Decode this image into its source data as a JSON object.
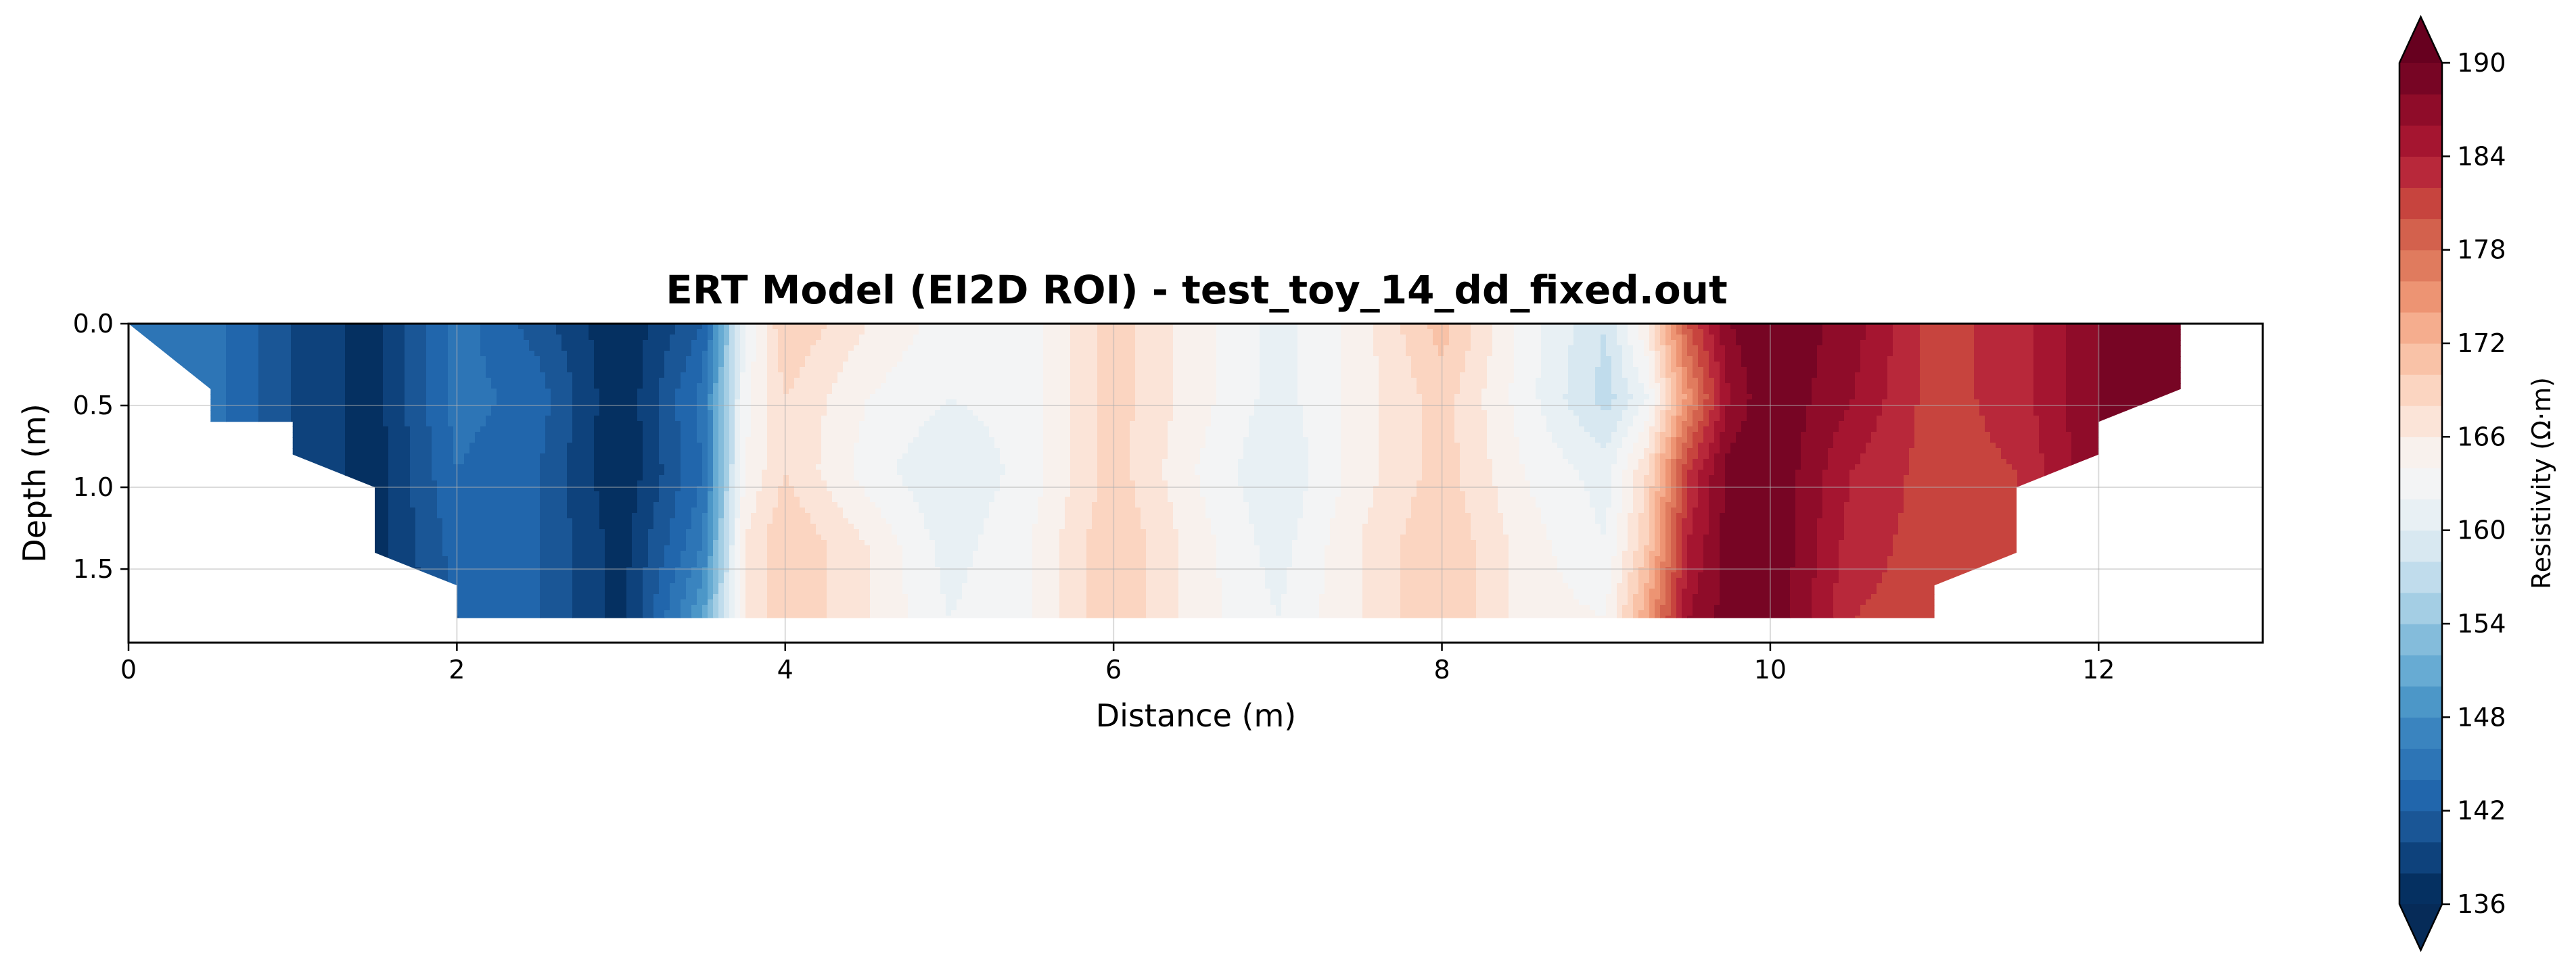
{
  "chart_data": {
    "type": "heatmap",
    "subtype": "filled-contour",
    "title": "ERT Model (EI2D ROI) - test_toy_14_dd_fixed.out",
    "xlabel": "Distance (m)",
    "ylabel": "Depth (m)",
    "xlim": [
      0,
      13
    ],
    "ylim": [
      1.95,
      0
    ],
    "y_inverted": true,
    "xticks": [
      0,
      2,
      4,
      6,
      8,
      10,
      12
    ],
    "xtick_labels": [
      "0",
      "2",
      "4",
      "6",
      "8",
      "10",
      "12"
    ],
    "yticks": [
      0.0,
      0.5,
      1.0,
      1.5
    ],
    "ytick_labels": [
      "0.0",
      "0.5",
      "1.0",
      "1.5"
    ],
    "grid": true,
    "colormap": "RdBu_r",
    "colorbar": {
      "label": "Resistivity (Ω·m)",
      "range": [
        136,
        190
      ],
      "levels": [
        136,
        138,
        140,
        142,
        144,
        146,
        148,
        150,
        152,
        154,
        156,
        158,
        160,
        162,
        164,
        166,
        168,
        170,
        172,
        174,
        176,
        178,
        180,
        182,
        184,
        186,
        188,
        190
      ],
      "ticks": [
        136,
        142,
        148,
        154,
        160,
        166,
        172,
        178,
        184,
        190
      ],
      "tick_labels": [
        "136",
        "142",
        "148",
        "154",
        "160",
        "166",
        "172",
        "178",
        "184",
        "190"
      ],
      "extend": "both",
      "colors": [
        "#053061",
        "#0e427c",
        "#1a5696",
        "#2166ac",
        "#2d75b6",
        "#3a84bf",
        "#4c97c8",
        "#67abd3",
        "#84bcdb",
        "#a4cee4",
        "#c0dcec",
        "#d8e8f1",
        "#e8f0f4",
        "#f3f4f5",
        "#f8f1ed",
        "#fbe4d8",
        "#fbd5c1",
        "#f9c2a7",
        "#f5ad8e",
        "#ed9473",
        "#e07b5e",
        "#d3614d",
        "#c7443e",
        "#b8283a",
        "#a51530",
        "#8f0c29",
        "#770524"
      ],
      "under_color": "#062b58",
      "over_color": "#67001f"
    },
    "roi_boundary": {
      "x": [
        0,
        0.5,
        0.5,
        1.0,
        1.0,
        1.5,
        1.5,
        2.0,
        2.0,
        11.0,
        11.0,
        11.5,
        11.5,
        12.0,
        12.0,
        12.5,
        12.5,
        0
      ],
      "depth": [
        0,
        0.4,
        0.6,
        0.6,
        0.8,
        1.0,
        1.4,
        1.6,
        1.8,
        1.8,
        1.6,
        1.4,
        1.0,
        0.8,
        0.6,
        0.4,
        0,
        0
      ]
    },
    "x": [
      0,
      0.5,
      1,
      1.5,
      2,
      2.5,
      3,
      3.5,
      3.75,
      4,
      4.5,
      5,
      5.5,
      6,
      6.5,
      7,
      7.5,
      8,
      8.5,
      9,
      9.25,
      9.5,
      9.75,
      10,
      10.5,
      11,
      11.5,
      12,
      12.5
    ],
    "depths": [
      0.0,
      0.45,
      0.9,
      1.35,
      1.8
    ],
    "values": [
      [
        145,
        145,
        140,
        137,
        145,
        141,
        136,
        142,
        162,
        170,
        166,
        163,
        163,
        169,
        165,
        161,
        165,
        171,
        163,
        158,
        166,
        180,
        188,
        190,
        187,
        181,
        183,
        188,
        189
      ],
      [
        145,
        145,
        140,
        137,
        145,
        143,
        136,
        145,
        163,
        168,
        164,
        162,
        163,
        169,
        165,
        161,
        165,
        169,
        163,
        157,
        162,
        175,
        186,
        190,
        186,
        181,
        183,
        188,
        189
      ],
      [
        145,
        145,
        140,
        137,
        144,
        142,
        136,
        144,
        164,
        168,
        163,
        160,
        163,
        169,
        164,
        160,
        165,
        169,
        164,
        161,
        168,
        182,
        189,
        190,
        184,
        181,
        182,
        188,
        189
      ],
      [
        145,
        145,
        140,
        137,
        143,
        142,
        137,
        146,
        166,
        170,
        166,
        161,
        164,
        170,
        165,
        161,
        166,
        170,
        165,
        162,
        170,
        184,
        189,
        190,
        183,
        181,
        182,
        188,
        189
      ],
      [
        145,
        145,
        140,
        137,
        142,
        142,
        137,
        150,
        166,
        170,
        166,
        162,
        164,
        170,
        165,
        162,
        166,
        170,
        165,
        164,
        174,
        186,
        189,
        190,
        182,
        181,
        182,
        188,
        189
      ]
    ]
  }
}
